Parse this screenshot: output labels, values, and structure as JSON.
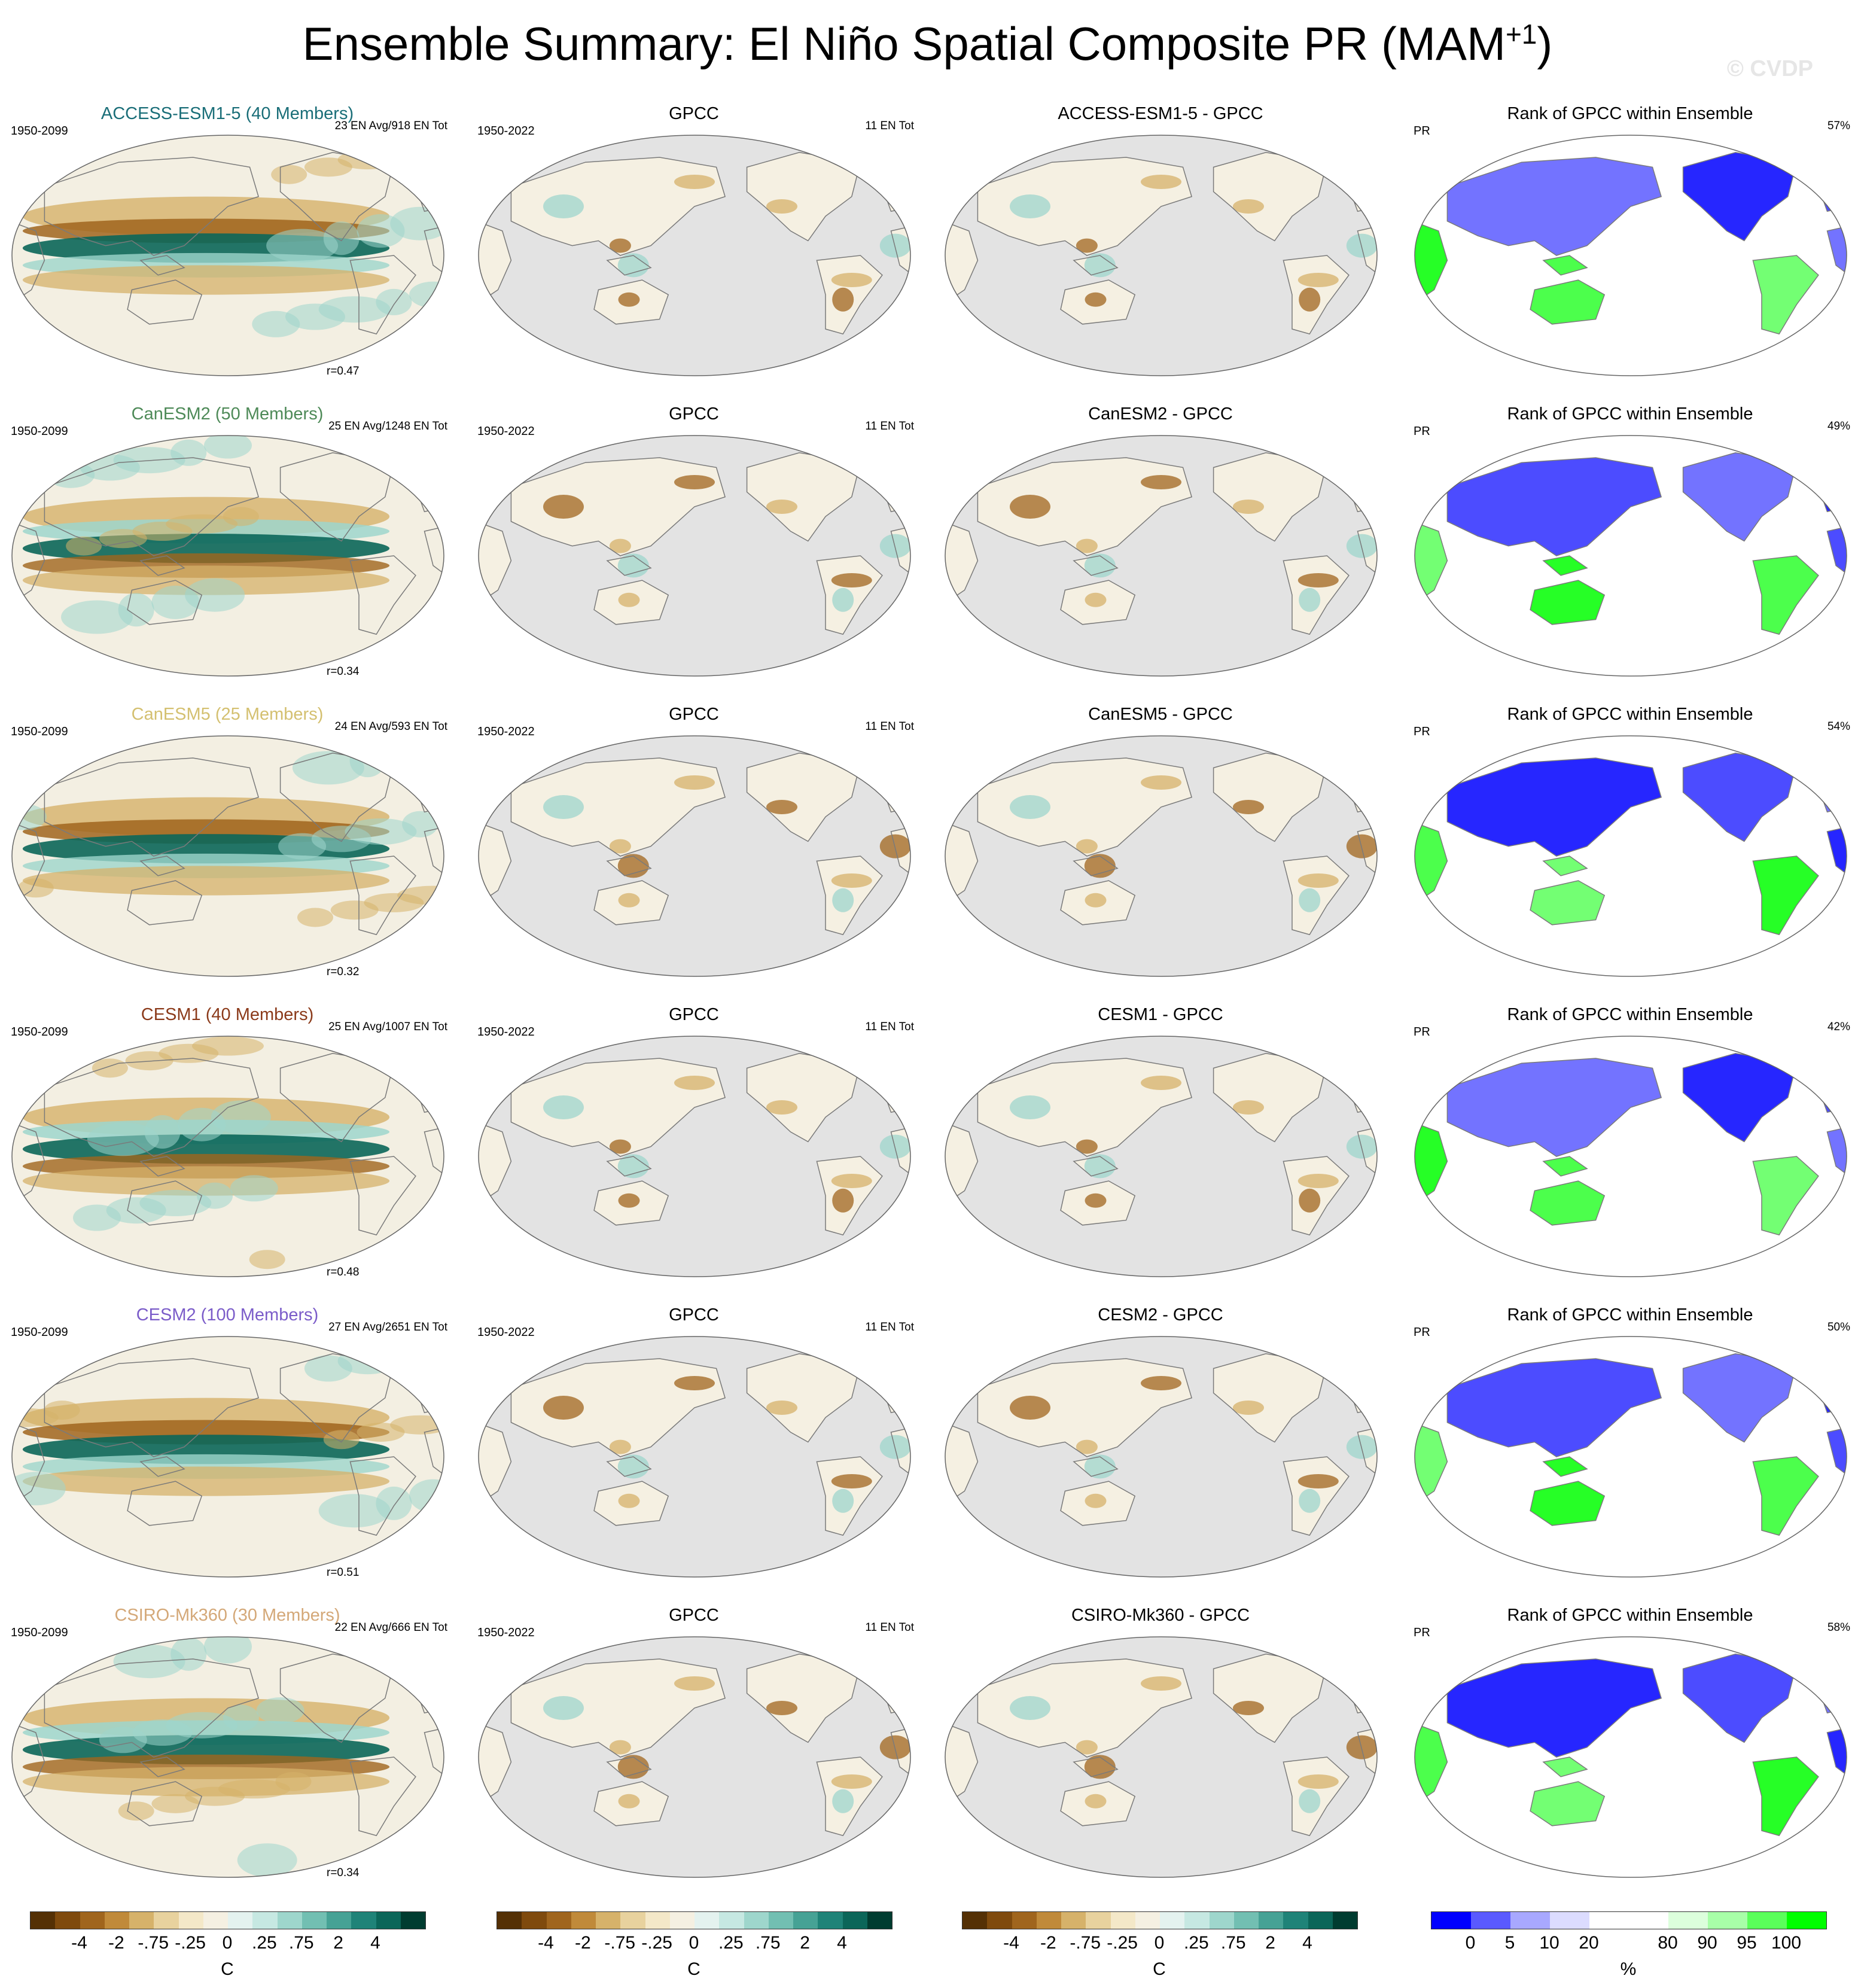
{
  "figure": {
    "title_main": "Ensemble Summary: El Niño Spatial Composite PR (MAM",
    "title_sup": "+1",
    "title_end": ")",
    "watermark": "© CVDP"
  },
  "rows": [
    {
      "model": "ACCESS-ESM1-5 (40 Members)",
      "model_color": "#1a6e78",
      "model_years": "1950-2099",
      "model_count": "23 EN Avg/918 EN Tot",
      "model_r": "r=0.47",
      "obs_title": "GPCC",
      "obs_years": "1950-2022",
      "obs_count": "11 EN Tot",
      "diff_title": "ACCESS-ESM1-5 - GPCC",
      "rank_title": "Rank of GPCC within Ensemble",
      "rank_var": "PR",
      "rank_pct": "57%"
    },
    {
      "model": "CanESM2 (50 Members)",
      "model_color": "#4e8a58",
      "model_years": "1950-2099",
      "model_count": "25 EN Avg/1248 EN Tot",
      "model_r": "r=0.34",
      "obs_title": "GPCC",
      "obs_years": "1950-2022",
      "obs_count": "11 EN Tot",
      "diff_title": "CanESM2 - GPCC",
      "rank_title": "Rank of GPCC within Ensemble",
      "rank_var": "PR",
      "rank_pct": "49%"
    },
    {
      "model": "CanESM5 (25 Members)",
      "model_color": "#d4c070",
      "model_years": "1950-2099",
      "model_count": "24 EN Avg/593 EN Tot",
      "model_r": "r=0.32",
      "obs_title": "GPCC",
      "obs_years": "1950-2022",
      "obs_count": "11 EN Tot",
      "diff_title": "CanESM5 - GPCC",
      "rank_title": "Rank of GPCC within Ensemble",
      "rank_var": "PR",
      "rank_pct": "54%"
    },
    {
      "model": "CESM1 (40 Members)",
      "model_color": "#8b3a1a",
      "model_years": "1950-2099",
      "model_count": "25 EN Avg/1007 EN Tot",
      "model_r": "r=0.48",
      "obs_title": "GPCC",
      "obs_years": "1950-2022",
      "obs_count": "11 EN Tot",
      "diff_title": "CESM1 - GPCC",
      "rank_title": "Rank of GPCC within Ensemble",
      "rank_var": "PR",
      "rank_pct": "42%"
    },
    {
      "model": "CESM2 (100 Members)",
      "model_color": "#7b5cc9",
      "model_years": "1950-2099",
      "model_count": "27 EN Avg/2651 EN Tot",
      "model_r": "r=0.51",
      "obs_title": "GPCC",
      "obs_years": "1950-2022",
      "obs_count": "11 EN Tot",
      "diff_title": "CESM2 - GPCC",
      "rank_title": "Rank of GPCC within Ensemble",
      "rank_var": "PR",
      "rank_pct": "50%"
    },
    {
      "model": "CSIRO-Mk360 (30 Members)",
      "model_color": "#d4a878",
      "model_years": "1950-2099",
      "model_count": "22 EN Avg/666 EN Tot",
      "model_r": "r=0.34",
      "obs_title": "GPCC",
      "obs_years": "1950-2022",
      "obs_count": "11 EN Tot",
      "diff_title": "CSIRO-Mk360 - GPCC",
      "rank_title": "Rank of GPCC within Ensemble",
      "rank_var": "PR",
      "rank_pct": "58%"
    }
  ],
  "colorbars": [
    {
      "unit": "C",
      "labels": [
        "-4",
        "-2",
        "-.75",
        "-.25",
        "0",
        ".25",
        ".75",
        "2",
        "4"
      ],
      "colors": [
        "#543005",
        "#7f4a0d",
        "#a0651d",
        "#c08a3a",
        "#d6b26a",
        "#e8d29e",
        "#f4e8c8",
        "#f5f0e2",
        "#e4f2ef",
        "#c6e8e2",
        "#9ed6cc",
        "#72bfb2",
        "#46a295",
        "#1f8378",
        "#0b6659",
        "#003c30"
      ]
    },
    {
      "unit": "C",
      "labels": [
        "-4",
        "-2",
        "-.75",
        "-.25",
        "0",
        ".25",
        ".75",
        "2",
        "4"
      ],
      "colors": [
        "#543005",
        "#7f4a0d",
        "#a0651d",
        "#c08a3a",
        "#d6b26a",
        "#e8d29e",
        "#f4e8c8",
        "#f5f0e2",
        "#e4f2ef",
        "#c6e8e2",
        "#9ed6cc",
        "#72bfb2",
        "#46a295",
        "#1f8378",
        "#0b6659",
        "#003c30"
      ]
    },
    {
      "unit": "C",
      "labels": [
        "-4",
        "-2",
        "-.75",
        "-.25",
        "0",
        ".25",
        ".75",
        "2",
        "4"
      ],
      "colors": [
        "#543005",
        "#7f4a0d",
        "#a0651d",
        "#c08a3a",
        "#d6b26a",
        "#e8d29e",
        "#f4e8c8",
        "#f5f0e2",
        "#e4f2ef",
        "#c6e8e2",
        "#9ed6cc",
        "#72bfb2",
        "#46a295",
        "#1f8378",
        "#0b6659",
        "#003c30"
      ]
    },
    {
      "unit": "%",
      "labels": [
        "0",
        "5",
        "10",
        "20",
        "80",
        "90",
        "95",
        "100"
      ],
      "colors": [
        "#0000ff",
        "#5a5aff",
        "#a8a8ff",
        "#dcdcff",
        "#ffffff",
        "#ffffff",
        "#dcffdc",
        "#a8ffa8",
        "#5aff5a",
        "#00ff00"
      ]
    }
  ],
  "map_colors": {
    "ocean_obs": "#e3e3e3",
    "coast": "#7a7a7a",
    "dry_strong": "#a0651d",
    "dry_weak": "#d6b26a",
    "wet_strong": "#0b6659",
    "wet_weak": "#9ed6cc",
    "rank_low": "#0000ff",
    "rank_high": "#00ff00"
  },
  "chart_data": {
    "type": "heatmap",
    "title": "Ensemble Summary: El Niño Spatial Composite PR (MAM+1)",
    "panel_layout": "6 rows (models) x 4 columns (model composite, GPCC, model - GPCC, rank of GPCC within ensemble)",
    "colorbar_levels_C": [
      -4,
      -2,
      -0.75,
      -0.25,
      0,
      0.25,
      0.75,
      2,
      4
    ],
    "colorbar_levels_pct": [
      0,
      5,
      10,
      20,
      80,
      90,
      95,
      100
    ],
    "pattern_correlations": [
      {
        "model": "ACCESS-ESM1-5",
        "r": 0.47
      },
      {
        "model": "CanESM2",
        "r": 0.34
      },
      {
        "model": "CanESM5",
        "r": 0.32
      },
      {
        "model": "CESM1",
        "r": 0.48
      },
      {
        "model": "CESM2",
        "r": 0.51
      },
      {
        "model": "CSIRO-Mk360",
        "r": 0.34
      }
    ],
    "rank_percent": [
      {
        "model": "ACCESS-ESM1-5",
        "pct": 57
      },
      {
        "model": "CanESM2",
        "pct": 49
      },
      {
        "model": "CanESM5",
        "pct": 54
      },
      {
        "model": "CESM1",
        "pct": 42
      },
      {
        "model": "CESM2",
        "pct": 50
      },
      {
        "model": "CSIRO-Mk360",
        "pct": 58
      }
    ]
  }
}
